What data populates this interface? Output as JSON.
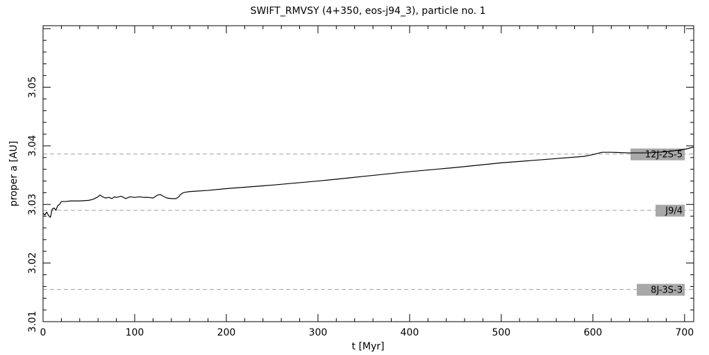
{
  "chart_data": {
    "type": "line",
    "title": "SWIFT_RMVSY (4+350, eos-j94_3), particle no. 1",
    "xlabel": "t [Myr]",
    "ylabel": "proper a [AU]",
    "xlim": [
      0,
      710
    ],
    "ylim": [
      3.01,
      3.0605
    ],
    "x_ticks": [
      0,
      100,
      200,
      300,
      400,
      500,
      600,
      700
    ],
    "x_tick_labels": [
      "0",
      "100",
      "200",
      "300",
      "400",
      "500",
      "600",
      "700"
    ],
    "y_ticks": [
      3.01,
      3.02,
      3.03,
      3.04,
      3.05
    ],
    "y_tick_labels": [
      "3.01",
      "3.02",
      "3.03",
      "3.04",
      "3.05"
    ],
    "grid": false,
    "series": [
      {
        "x": [
          0,
          2,
          4,
          6,
          8,
          10,
          12,
          14,
          16,
          18,
          20,
          25,
          30,
          40,
          50,
          55,
          60,
          62,
          65,
          68,
          72,
          75,
          78,
          80,
          85,
          88,
          90,
          95,
          100,
          105,
          110,
          115,
          120,
          125,
          128,
          130,
          135,
          140,
          145,
          148,
          150,
          153,
          156,
          160,
          180,
          200,
          250,
          300,
          320,
          350,
          400,
          450,
          500,
          550,
          590,
          600,
          610,
          620,
          640,
          660,
          680,
          700,
          710
        ],
        "y": [
          3.0285,
          3.0282,
          3.0287,
          3.0281,
          3.0278,
          3.0292,
          3.0294,
          3.029,
          3.0298,
          3.03,
          3.0305,
          3.0305,
          3.0306,
          3.0306,
          3.0307,
          3.0309,
          3.0313,
          3.0316,
          3.0313,
          3.0311,
          3.0312,
          3.031,
          3.0313,
          3.0312,
          3.0314,
          3.0312,
          3.031,
          3.0313,
          3.0312,
          3.0313,
          3.0312,
          3.0312,
          3.0311,
          3.0316,
          3.0317,
          3.0315,
          3.0311,
          3.031,
          3.031,
          3.0313,
          3.0317,
          3.032,
          3.0321,
          3.0322,
          3.0324,
          3.0327,
          3.0333,
          3.034,
          3.0343,
          3.0348,
          3.0356,
          3.0363,
          3.0371,
          3.0377,
          3.0382,
          3.0385,
          3.0389,
          3.0389,
          3.0388,
          3.0388,
          3.039,
          3.0394,
          3.0398
        ]
      }
    ],
    "resonances": [
      {
        "label": "12J-2S-5",
        "a": 3.0386
      },
      {
        "label": "J9/4",
        "a": 3.029
      },
      {
        "label": "8J-3S-3",
        "a": 3.0155
      }
    ],
    "colors": {
      "line": "#000000",
      "resonance_line": "#a0a0a0",
      "label_bg": "#a8a8a8"
    }
  }
}
